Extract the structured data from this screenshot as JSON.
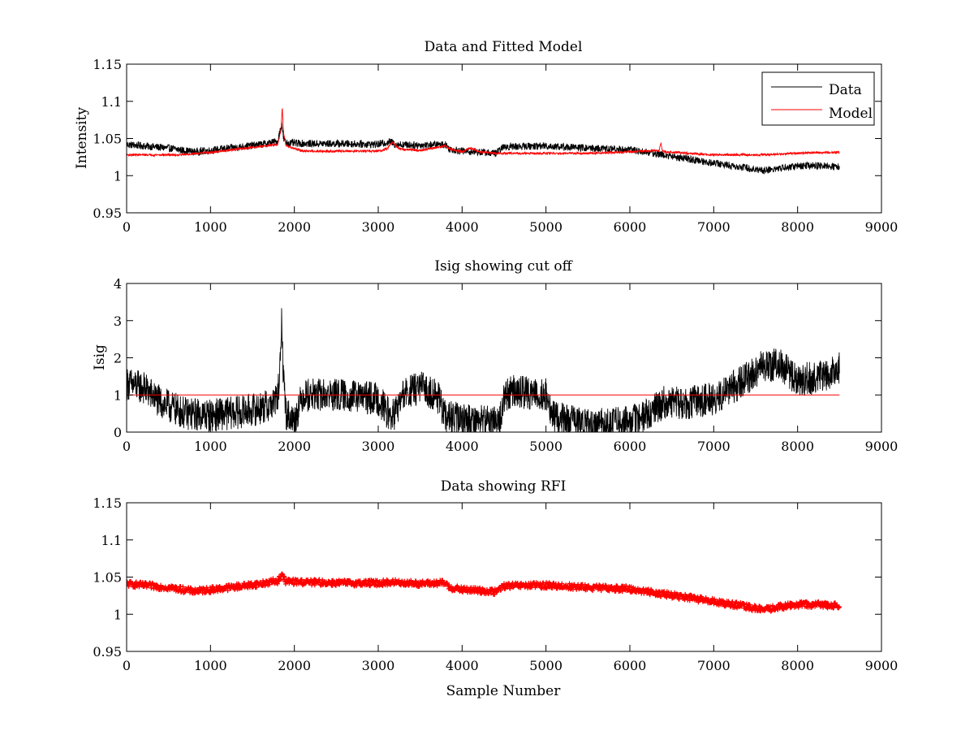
{
  "chart_data": [
    {
      "type": "line",
      "title": "Data and Fitted Model",
      "xlabel": "",
      "ylabel": "Intensity",
      "xlim": [
        0,
        9000
      ],
      "ylim": [
        0.95,
        1.15
      ],
      "xticks": [
        0,
        1000,
        2000,
        3000,
        4000,
        5000,
        6000,
        7000,
        8000,
        9000
      ],
      "yticks": [
        0.95,
        1,
        1.05,
        1.1,
        1.15
      ],
      "xtick_labels": [
        "0",
        "1000",
        "2000",
        "3000",
        "4000",
        "5000",
        "6000",
        "7000",
        "8000",
        "9000"
      ],
      "ytick_labels": [
        "0.95",
        "1",
        "1.05",
        "1.1",
        "1.15"
      ],
      "legend": {
        "position": "top-right",
        "entries": [
          "Data",
          "Model"
        ]
      },
      "series": [
        {
          "name": "Data",
          "color": "#000000",
          "noise": 0.005,
          "x": [
            0,
            200,
            500,
            800,
            1000,
            1300,
            1600,
            1800,
            1850,
            1870,
            1900,
            2200,
            2600,
            3000,
            3150,
            3200,
            3500,
            3800,
            3850,
            4000,
            4200,
            4400,
            4500,
            5000,
            5500,
            6000,
            6300,
            6600,
            7000,
            7300,
            7600,
            7800,
            8000,
            8300,
            8500
          ],
          "y": [
            1.042,
            1.04,
            1.037,
            1.032,
            1.034,
            1.038,
            1.042,
            1.046,
            1.07,
            1.05,
            1.044,
            1.043,
            1.043,
            1.042,
            1.046,
            1.042,
            1.041,
            1.042,
            1.036,
            1.033,
            1.032,
            1.03,
            1.039,
            1.04,
            1.037,
            1.035,
            1.03,
            1.024,
            1.017,
            1.012,
            1.007,
            1.01,
            1.013,
            1.013,
            1.012
          ]
        },
        {
          "name": "Model",
          "color": "#ff0000",
          "noise": 0.0015,
          "x": [
            0,
            300,
            600,
            1000,
            1500,
            1800,
            1840,
            1855,
            1870,
            1900,
            2100,
            2500,
            3000,
            3100,
            3170,
            3250,
            3500,
            3800,
            3850,
            4000,
            4100,
            4200,
            4400,
            4500,
            5000,
            5500,
            6000,
            6350,
            6370,
            6385,
            6420,
            6700,
            7000,
            7500,
            7800,
            8000,
            8200,
            8500
          ],
          "y": [
            1.028,
            1.028,
            1.028,
            1.031,
            1.038,
            1.042,
            1.06,
            1.093,
            1.06,
            1.04,
            1.033,
            1.033,
            1.033,
            1.036,
            1.045,
            1.036,
            1.034,
            1.04,
            1.036,
            1.032,
            1.037,
            1.032,
            1.03,
            1.03,
            1.03,
            1.03,
            1.032,
            1.034,
            1.045,
            1.034,
            1.032,
            1.03,
            1.028,
            1.028,
            1.029,
            1.03,
            1.031,
            1.031
          ]
        }
      ]
    },
    {
      "type": "line",
      "title": "Isig showing cut off",
      "xlabel": "",
      "ylabel": "Isig",
      "xlim": [
        0,
        9000
      ],
      "ylim": [
        0,
        4
      ],
      "xticks": [
        0,
        1000,
        2000,
        3000,
        4000,
        5000,
        6000,
        7000,
        8000,
        9000
      ],
      "yticks": [
        0,
        1,
        2,
        3,
        4
      ],
      "xtick_labels": [
        "0",
        "1000",
        "2000",
        "3000",
        "4000",
        "5000",
        "6000",
        "7000",
        "8000",
        "9000"
      ],
      "ytick_labels": [
        "0",
        "1",
        "2",
        "3",
        "4"
      ],
      "series": [
        {
          "color": "#000000",
          "noise": 0.45,
          "x": [
            0,
            200,
            400,
            700,
            1000,
            1400,
            1700,
            1800,
            1840,
            1850,
            1860,
            1900,
            2000,
            2100,
            2500,
            3000,
            3150,
            3200,
            3300,
            3500,
            3700,
            3800,
            4000,
            4300,
            4450,
            4500,
            4600,
            5000,
            5050,
            5100,
            5500,
            6000,
            6300,
            6400,
            6700,
            7000,
            7300,
            7600,
            7800,
            8000,
            8300,
            8500
          ],
          "y": [
            1.3,
            1.2,
            0.8,
            0.5,
            0.45,
            0.55,
            0.7,
            0.9,
            2.0,
            3.3,
            2.0,
            0.5,
            0.3,
            1.0,
            1.0,
            0.9,
            0.4,
            0.5,
            1.0,
            1.2,
            1.0,
            0.4,
            0.35,
            0.3,
            0.3,
            0.95,
            1.1,
            1.0,
            0.6,
            0.4,
            0.2,
            0.25,
            0.6,
            0.8,
            0.8,
            0.9,
            1.3,
            1.8,
            1.8,
            1.4,
            1.5,
            1.7
          ]
        },
        {
          "color": "#ff0000",
          "noise": 0,
          "x": [
            0,
            8500
          ],
          "y": [
            1,
            1
          ]
        }
      ]
    },
    {
      "type": "scatter",
      "title": "Data showing RFI",
      "xlabel": "Sample Number",
      "ylabel": "",
      "xlim": [
        0,
        9000
      ],
      "ylim": [
        0.95,
        1.15
      ],
      "xticks": [
        0,
        1000,
        2000,
        3000,
        4000,
        5000,
        6000,
        7000,
        8000,
        9000
      ],
      "yticks": [
        0.95,
        1,
        1.05,
        1.1,
        1.15
      ],
      "xtick_labels": [
        "0",
        "1000",
        "2000",
        "3000",
        "4000",
        "5000",
        "6000",
        "7000",
        "8000",
        "9000"
      ],
      "ytick_labels": [
        "0.95",
        "1",
        "1.05",
        "1.1",
        "1.15"
      ],
      "series": [
        {
          "color": "#ff0000",
          "marker": "plus",
          "noise": 0.004,
          "x": [
            0,
            200,
            500,
            800,
            1000,
            1300,
            1600,
            1800,
            1850,
            1900,
            2200,
            2600,
            3000,
            3200,
            3500,
            3800,
            3850,
            4000,
            4200,
            4400,
            4500,
            5000,
            5500,
            6000,
            6300,
            6600,
            7000,
            7300,
            7600,
            7800,
            8000,
            8300,
            8500
          ],
          "y": [
            1.041,
            1.039,
            1.036,
            1.031,
            1.033,
            1.037,
            1.041,
            1.045,
            1.052,
            1.044,
            1.043,
            1.042,
            1.042,
            1.043,
            1.041,
            1.042,
            1.036,
            1.033,
            1.032,
            1.03,
            1.038,
            1.039,
            1.036,
            1.034,
            1.029,
            1.024,
            1.017,
            1.012,
            1.006,
            1.01,
            1.013,
            1.013,
            1.011
          ]
        }
      ]
    }
  ]
}
